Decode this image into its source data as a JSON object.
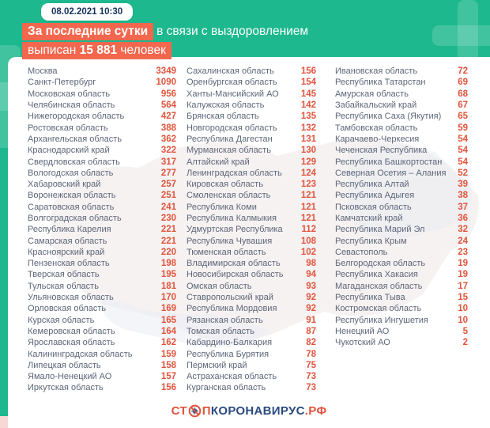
{
  "header": {
    "timestamp": "08.02.2021 10:30",
    "line1_highlight": "За последние сутки",
    "line1_rest": "в связи с выздоровлением",
    "line2_prefix": "выписан ",
    "line2_number": "15 881",
    "line2_suffix": " человек"
  },
  "footer": {
    "logo_st": "СТ",
    "logo_p": "П",
    "logo_coronavirus": "КОРОНАВИРУС",
    "logo_rf": ".РФ",
    "logo_icon": "no-virus-icon"
  },
  "colors": {
    "background_teal": "#1db88e",
    "highlight_red": "#f2674e",
    "value_red": "#e0543c",
    "name_gray": "#5d6678",
    "timestamp_navy": "#16325c",
    "logo_navy": "#2b4a80"
  },
  "chart_data": {
    "type": "table",
    "title": "За последние сутки в связи с выздоровлением выписан 15 881 человек",
    "timestamp": "08.02.2021 10:30",
    "total_recovered_last_day": 15881,
    "columns": [
      {
        "rows": [
          {
            "region": "Москва",
            "value": "3349"
          },
          {
            "region": "Санкт-Петербург",
            "value": "1090"
          },
          {
            "region": "Московская область",
            "value": "956"
          },
          {
            "region": "Челябинская область",
            "value": "564"
          },
          {
            "region": "Нижегородская область",
            "value": "427"
          },
          {
            "region": "Ростовская область",
            "value": "388"
          },
          {
            "region": "Архангельская область",
            "value": "362"
          },
          {
            "region": "Краснодарский край",
            "value": "322"
          },
          {
            "region": "Свердловская область",
            "value": "317"
          },
          {
            "region": "Вологодская область",
            "value": "277"
          },
          {
            "region": "Хабаровский край",
            "value": "257"
          },
          {
            "region": "Воронежская область",
            "value": "251"
          },
          {
            "region": "Саратовская область",
            "value": "241"
          },
          {
            "region": "Волгоградская область",
            "value": "230"
          },
          {
            "region": "Республика Карелия",
            "value": "221"
          },
          {
            "region": "Самарская область",
            "value": "221"
          },
          {
            "region": "Красноярский край",
            "value": "220"
          },
          {
            "region": "Пензенская область",
            "value": "198"
          },
          {
            "region": "Тверская область",
            "value": "195"
          },
          {
            "region": "Тульская область",
            "value": "181"
          },
          {
            "region": "Ульяновская область",
            "value": "170"
          },
          {
            "region": "Орловская область",
            "value": "169"
          },
          {
            "region": "Курская область",
            "value": "165"
          },
          {
            "region": "Кемеровская область",
            "value": "164"
          },
          {
            "region": "Ярославская область",
            "value": "162"
          },
          {
            "region": "Калининградская область",
            "value": "159"
          },
          {
            "region": "Липецкая область",
            "value": "158"
          },
          {
            "region": "Ямало-Ненецкий АО",
            "value": "157"
          },
          {
            "region": "Иркутская область",
            "value": "156"
          }
        ]
      },
      {
        "rows": [
          {
            "region": "Сахалинская область",
            "value": "156"
          },
          {
            "region": "Оренбургская область",
            "value": "154"
          },
          {
            "region": "Ханты-Мансийский АО",
            "value": "145"
          },
          {
            "region": "Калужская область",
            "value": "142"
          },
          {
            "region": "Брянская область",
            "value": "135"
          },
          {
            "region": "Новгородская область",
            "value": "132"
          },
          {
            "region": "Республика Дагестан",
            "value": "131"
          },
          {
            "region": "Мурманская область",
            "value": "130"
          },
          {
            "region": "Алтайский край",
            "value": "129"
          },
          {
            "region": "Ленинградская область",
            "value": "124"
          },
          {
            "region": "Кировская область",
            "value": "123"
          },
          {
            "region": "Смоленская область",
            "value": "121"
          },
          {
            "region": "Республика Коми",
            "value": "121"
          },
          {
            "region": "Республика Калмыкия",
            "value": "121"
          },
          {
            "region": "Удмуртская Республика",
            "value": "112"
          },
          {
            "region": "Республика Чувашия",
            "value": "108"
          },
          {
            "region": "Тюменская область",
            "value": "102"
          },
          {
            "region": "Владимирская область",
            "value": "98"
          },
          {
            "region": "Новосибирская область",
            "value": "94"
          },
          {
            "region": "Омская область",
            "value": "93"
          },
          {
            "region": "Ставропольский край",
            "value": "92"
          },
          {
            "region": "Республика Мордовия",
            "value": "92"
          },
          {
            "region": "Рязанская область",
            "value": "91"
          },
          {
            "region": "Томская область",
            "value": "87"
          },
          {
            "region": "Кабардино-Балкария",
            "value": "82"
          },
          {
            "region": "Республика Бурятия",
            "value": "78"
          },
          {
            "region": "Пермский край",
            "value": "75"
          },
          {
            "region": "Астраханская область",
            "value": "73"
          },
          {
            "region": "Курганская область",
            "value": "73"
          }
        ]
      },
      {
        "rows": [
          {
            "region": "Ивановская область",
            "value": "72"
          },
          {
            "region": "Республика Татарстан",
            "value": "69"
          },
          {
            "region": "Амурская область",
            "value": "68"
          },
          {
            "region": "Забайкальский край",
            "value": "67"
          },
          {
            "region": "Республика Саха (Якутия)",
            "value": "65"
          },
          {
            "region": "Тамбовская область",
            "value": "59"
          },
          {
            "region": "Карачаево-Черкесия",
            "value": "54"
          },
          {
            "region": "Чеченская Республика",
            "value": "54"
          },
          {
            "region": "Республика Башкортостан",
            "value": "54"
          },
          {
            "region": "Северная Осетия – Алания",
            "value": "52"
          },
          {
            "region": "Республика Алтай",
            "value": "39"
          },
          {
            "region": "Республика Адыгея",
            "value": "38"
          },
          {
            "region": "Псковская область",
            "value": "37"
          },
          {
            "region": "Камчатский край",
            "value": "36"
          },
          {
            "region": "Республика Марий Эл",
            "value": "32"
          },
          {
            "region": "Республика Крым",
            "value": "24"
          },
          {
            "region": "Севастополь",
            "value": "23"
          },
          {
            "region": "Белгородская область",
            "value": "19"
          },
          {
            "region": "Республика Хакасия",
            "value": "19"
          },
          {
            "region": "Магаданская область",
            "value": "17"
          },
          {
            "region": "Республика Тыва",
            "value": "15"
          },
          {
            "region": "Костромская область",
            "value": "10"
          },
          {
            "region": "Республика Ингушетия",
            "value": "10"
          },
          {
            "region": "Ненецкий АО",
            "value": "5"
          },
          {
            "region": "Чукотский АО",
            "value": "2"
          }
        ]
      }
    ]
  }
}
